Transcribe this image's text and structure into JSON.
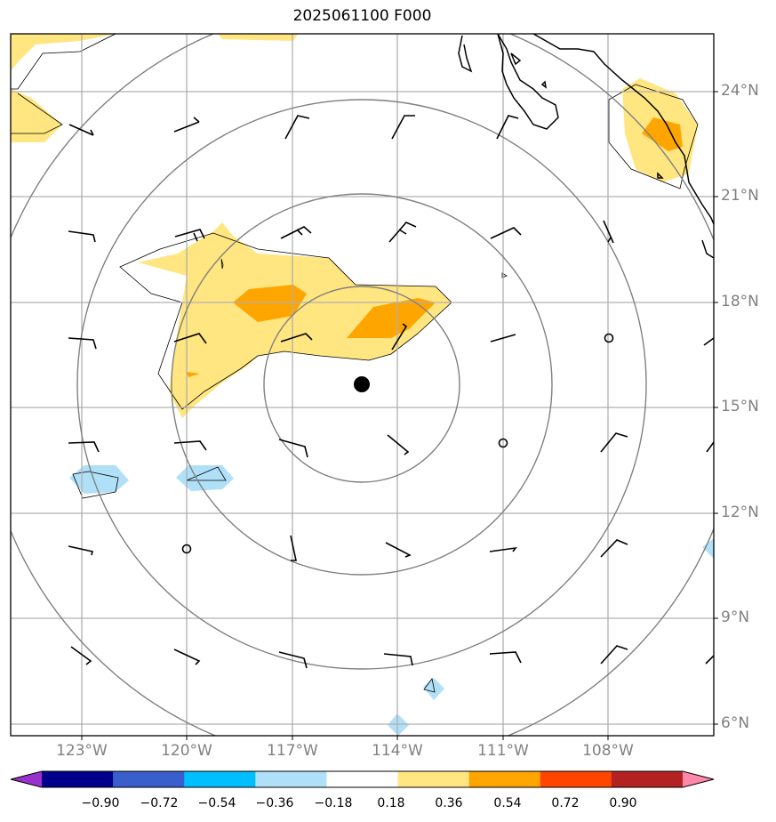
{
  "title": "2025061100 F000",
  "lat_labels": [
    "24°N",
    "21°N",
    "18°N",
    "15°N",
    "12°N",
    "9°N",
    "6°N"
  ],
  "lon_labels": [
    "123°W",
    "120°W",
    "117°W",
    "114°W",
    "111°W",
    "108°W"
  ],
  "center_marker": {
    "lat": 15.6,
    "lon": -115.0
  },
  "colorbar": {
    "labels": [
      "−0.90",
      "−0.72",
      "−0.54",
      "−0.36",
      "−0.18",
      "0.18",
      "0.36",
      "0.54",
      "0.72",
      "0.90"
    ],
    "colors": [
      "#9932cc",
      "#00008b",
      "#3a5fcd",
      "#00bfff",
      "#b0e0f8",
      "#ffffff",
      "#ffe680",
      "#ffa500",
      "#ff4500",
      "#b22222",
      "#ff88aa"
    ]
  },
  "range_rings": 4
}
